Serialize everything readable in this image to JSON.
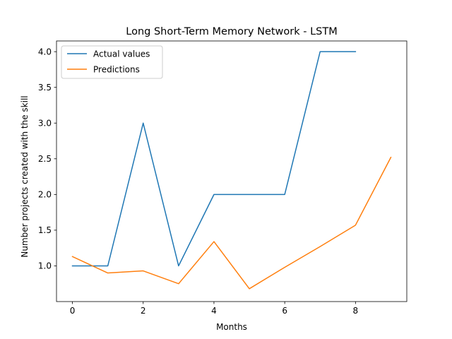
{
  "chart_data": {
    "type": "line",
    "title": "Long Short-Term Memory Network - LSTM",
    "xlabel": "Months",
    "ylabel": "Number projects created with the skill",
    "xlim": [
      -0.45,
      9.45
    ],
    "ylim": [
      0.5,
      4.15
    ],
    "xticks": [
      0,
      2,
      4,
      6,
      8
    ],
    "yticks": [
      1.0,
      1.5,
      2.0,
      2.5,
      3.0,
      3.5,
      4.0
    ],
    "ytick_labels": [
      "1.0",
      "1.5",
      "2.0",
      "2.5",
      "3.0",
      "3.5",
      "4.0"
    ],
    "grid": false,
    "legend_position": "top-left",
    "series": [
      {
        "name": "Actual values",
        "color": "#1f77b4",
        "x": [
          0,
          1,
          2,
          3,
          4,
          5,
          6,
          7,
          8
        ],
        "y": [
          1.0,
          1.0,
          3.0,
          1.0,
          2.0,
          2.0,
          2.0,
          4.0,
          4.0
        ]
      },
      {
        "name": "Predictions",
        "color": "#ff7f0e",
        "x": [
          0,
          1,
          2,
          3,
          4,
          5,
          6,
          7,
          8,
          9
        ],
        "y": [
          1.13,
          0.9,
          0.93,
          0.75,
          1.34,
          0.68,
          0.98,
          1.27,
          1.57,
          2.52
        ]
      }
    ]
  }
}
